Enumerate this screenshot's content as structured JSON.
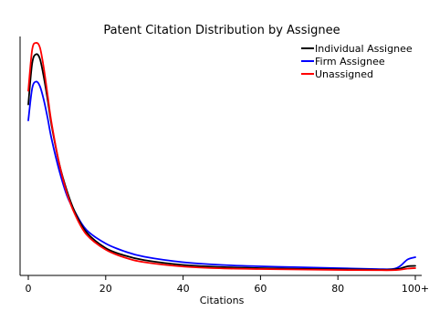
{
  "chart_data": {
    "type": "line",
    "title": "Patent Citation Distribution by Assignee",
    "xlabel": "Citations",
    "ylabel": "",
    "xlim": [
      0,
      100
    ],
    "ylim": [
      0,
      1
    ],
    "x_ticks": [
      0,
      20,
      40,
      60,
      80,
      100
    ],
    "x_tick_labels": [
      "0",
      "20",
      "40",
      "60",
      "80",
      "100+"
    ],
    "grid": false,
    "legend_position": "top-right",
    "x": [
      0,
      1,
      2,
      3,
      4,
      5,
      6,
      8,
      10,
      12,
      15,
      20,
      25,
      30,
      40,
      50,
      60,
      70,
      80,
      90,
      94,
      96,
      98,
      100
    ],
    "series": [
      {
        "name": "Individual Assignee",
        "color": "#000000",
        "values": [
          0.73,
          0.91,
          0.95,
          0.93,
          0.85,
          0.75,
          0.64,
          0.47,
          0.35,
          0.26,
          0.17,
          0.1,
          0.067,
          0.047,
          0.026,
          0.017,
          0.012,
          0.009,
          0.007,
          0.005,
          0.006,
          0.01,
          0.02,
          0.022
        ]
      },
      {
        "name": "Firm Assignee",
        "color": "#0000ff",
        "values": [
          0.66,
          0.8,
          0.83,
          0.81,
          0.75,
          0.67,
          0.58,
          0.44,
          0.33,
          0.26,
          0.18,
          0.12,
          0.085,
          0.062,
          0.038,
          0.026,
          0.02,
          0.016,
          0.012,
          0.008,
          0.008,
          0.02,
          0.05,
          0.06
        ]
      },
      {
        "name": "Unassigned",
        "color": "#ff0000",
        "values": [
          0.79,
          0.97,
          1.0,
          0.98,
          0.89,
          0.77,
          0.65,
          0.47,
          0.34,
          0.25,
          0.16,
          0.093,
          0.058,
          0.038,
          0.019,
          0.011,
          0.008,
          0.006,
          0.004,
          0.003,
          0.003,
          0.005,
          0.01,
          0.012
        ]
      }
    ]
  }
}
